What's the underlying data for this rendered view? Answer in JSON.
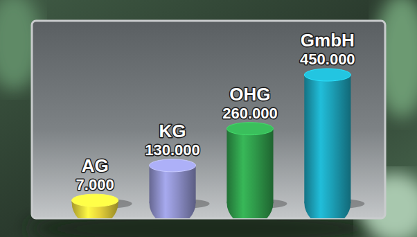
{
  "chart_data": {
    "type": "bar",
    "categories": [
      "AG",
      "KG",
      "OHG",
      "GmbH"
    ],
    "values": [
      7000,
      130000,
      260000,
      450000
    ],
    "value_labels": [
      "7.000",
      "130.000",
      "260.000",
      "450.000"
    ],
    "colors": [
      "#e6d23a",
      "#8c8ec8",
      "#2f9a4a",
      "#1c9fb6"
    ],
    "data_labels": true,
    "tick_labels": false
  }
}
